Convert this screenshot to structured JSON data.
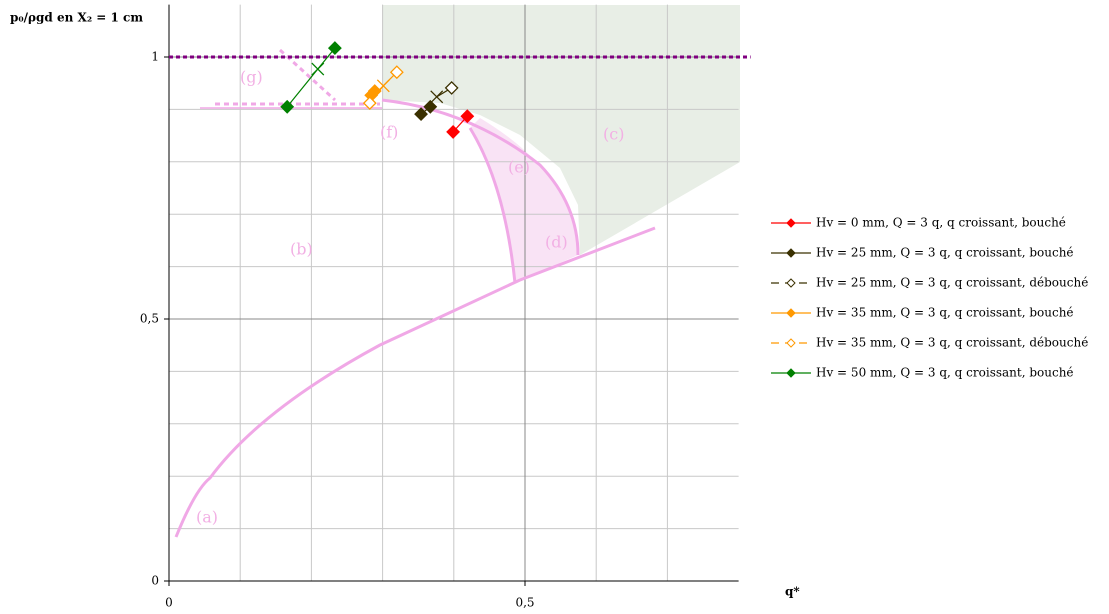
{
  "chart_data": {
    "type": "line",
    "ylabel": "p₀/ρgd en X₂ = 1 cm",
    "xlabel": "q*",
    "xlim": [
      0,
      0.8
    ],
    "ylim": [
      0,
      1.1
    ],
    "xticks": [
      0,
      {
        "value": 0.5,
        "label": "0,5"
      }
    ],
    "yticks": [
      0,
      {
        "value": 0.5,
        "label": "0,5"
      },
      1
    ],
    "xminor": [
      0.1,
      0.2,
      0.3,
      0.4,
      0.6,
      0.7
    ],
    "yminor": [
      0.1,
      0.2,
      0.3,
      0.4,
      0.6,
      0.7,
      0.8,
      0.9
    ],
    "grid": true,
    "hline": {
      "value": 1,
      "color": "#800080"
    },
    "legend": "right",
    "annotations": [
      "(a)",
      "(b)",
      "(c)",
      "(d)",
      "(e)",
      "(f)",
      "(g)"
    ],
    "series": [
      {
        "name": "Hv = 0 mm, Q = 3 q, q croissant, bouché",
        "color": "#ff0000",
        "dash": false,
        "filled": true,
        "x": [
          0.399,
          0.419
        ],
        "values": [
          0.857,
          0.887
        ],
        "markers": [
          "diamond",
          "diamond"
        ]
      },
      {
        "name": "Hv = 25 mm, Q = 3 q, q croissant, bouché",
        "color": "#3a3000",
        "dash": false,
        "filled": true,
        "x": [
          0.354,
          0.367
        ],
        "values": [
          0.891,
          0.905
        ],
        "markers": [
          "diamond",
          "diamond"
        ]
      },
      {
        "name": "Hv = 25 mm, Q = 3 q, q croissant, débouché",
        "color": "#3a3000",
        "dash": true,
        "filled": false,
        "x": [
          0.376,
          0.397
        ],
        "values": [
          0.924,
          0.941
        ],
        "markers": [
          "x",
          "diamond"
        ]
      },
      {
        "name": "Hv = 35 mm, Q = 3 q, q croissant, bouché",
        "color": "#ff9900",
        "dash": false,
        "filled": true,
        "x": [
          0.284,
          0.289
        ],
        "values": [
          0.927,
          0.935
        ],
        "markers": [
          "diamond",
          "diamond"
        ]
      },
      {
        "name": "Hv = 35 mm, Q = 3 q, q croissant, débouché",
        "color": "#ff9900",
        "dash": true,
        "filled": false,
        "x": [
          0.282,
          0.301,
          0.32
        ],
        "values": [
          0.912,
          0.945,
          0.971
        ],
        "markers": [
          "diamond",
          "x",
          "diamond"
        ]
      },
      {
        "name": "Hv = 50 mm, Q = 3 q, q croissant, bouché",
        "color": "#008000",
        "dash": false,
        "filled": true,
        "x": [
          0.166,
          0.209,
          0.233
        ],
        "values": [
          0.905,
          0.977,
          1.017
        ],
        "markers": [
          "diamond",
          "x",
          "diamond"
        ]
      }
    ]
  }
}
